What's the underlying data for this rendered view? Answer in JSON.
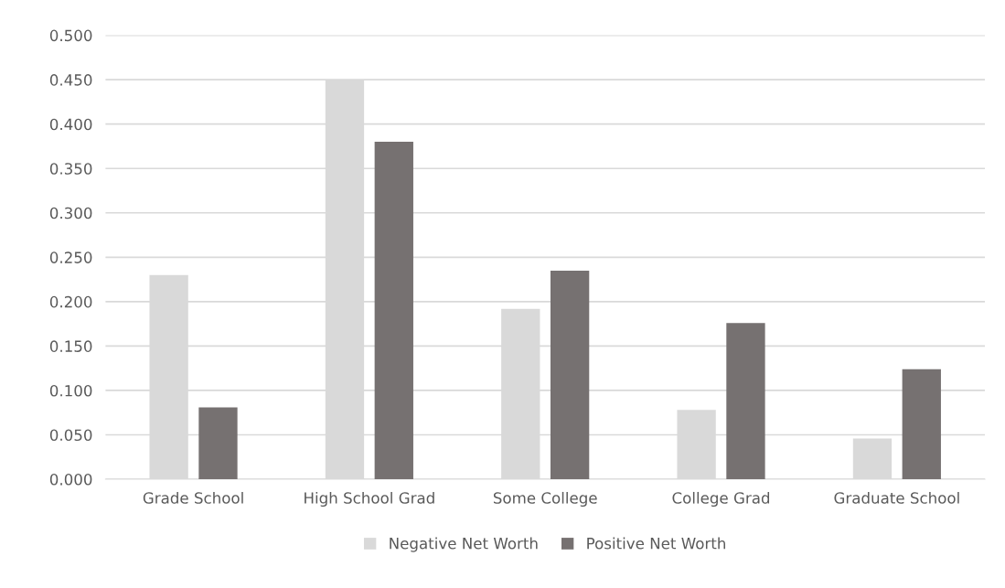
{
  "chart_data": {
    "type": "bar",
    "categories": [
      "Grade School",
      "High School Grad",
      "Some College",
      "College Grad",
      "Graduate School"
    ],
    "series": [
      {
        "name": "Negative Net Worth",
        "color": "#d9d9d9",
        "values": [
          0.23,
          0.45,
          0.192,
          0.078,
          0.046
        ]
      },
      {
        "name": "Positive Net Worth",
        "color": "#767171",
        "values": [
          0.081,
          0.38,
          0.235,
          0.176,
          0.124
        ]
      }
    ],
    "ylim": [
      0,
      0.5
    ],
    "yticks": [
      {
        "value": 0,
        "label": "0.000"
      },
      {
        "value": 0.05,
        "label": "0.050"
      },
      {
        "value": 0.1,
        "label": "0.100"
      },
      {
        "value": 0.15,
        "label": "0.150"
      },
      {
        "value": 0.2,
        "label": "0.200"
      },
      {
        "value": 0.25,
        "label": "0.250"
      },
      {
        "value": 0.3,
        "label": "0.300"
      },
      {
        "value": 0.35,
        "label": "0.350"
      },
      {
        "value": 0.4,
        "label": "0.400"
      },
      {
        "value": 0.45,
        "label": "0.450"
      },
      {
        "value": 0.5,
        "label": "0.500"
      }
    ],
    "grid": "y",
    "legend": "bottom"
  }
}
